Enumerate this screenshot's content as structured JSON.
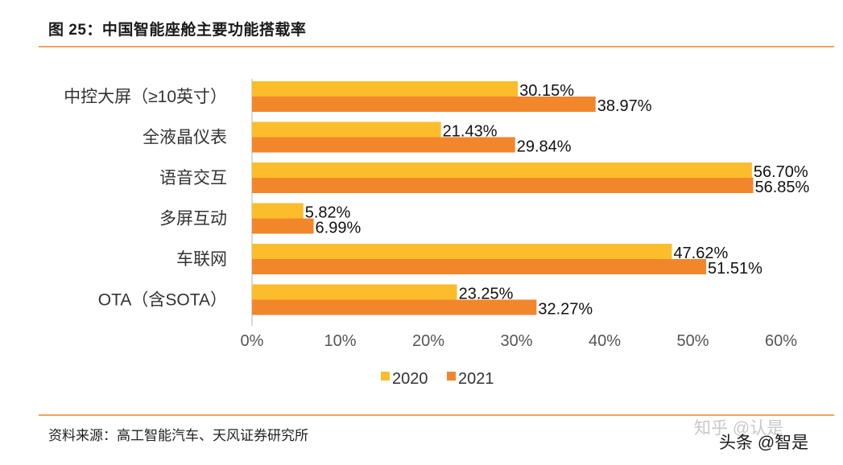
{
  "header": {
    "title": "图 25：中国智能座舱主要功能搭载率"
  },
  "footer": {
    "source": "资料来源：高工智能汽车、天风证券研究所",
    "watermark_faint": "知乎 @认是",
    "watermark": "头条 @智是"
  },
  "chart_data": {
    "type": "bar",
    "orientation": "horizontal",
    "title": "图 25：中国智能座舱主要功能搭载率",
    "categories": [
      "中控大屏（≥10英寸）",
      "全液晶仪表",
      "语音交互",
      "多屏互动",
      "车联网",
      "OTA（含SOTA）"
    ],
    "series": [
      {
        "name": "2020",
        "values": [
          30.15,
          21.43,
          56.7,
          5.82,
          47.62,
          23.25
        ],
        "labels": [
          "30.15%",
          "21.43%",
          "56.70%",
          "5.82%",
          "47.62%",
          "23.25%"
        ],
        "color": "#fbbd2c"
      },
      {
        "name": "2021",
        "values": [
          38.97,
          29.84,
          56.85,
          6.99,
          51.51,
          32.27
        ],
        "labels": [
          "38.97%",
          "29.84%",
          "56.85%",
          "6.99%",
          "51.51%",
          "32.27%"
        ],
        "color": "#f2862b"
      }
    ],
    "xlim": [
      0,
      60
    ],
    "xticks": [
      "0%",
      "10%",
      "20%",
      "30%",
      "40%",
      "50%",
      "60%"
    ],
    "legend_position": "bottom",
    "grid": false
  }
}
